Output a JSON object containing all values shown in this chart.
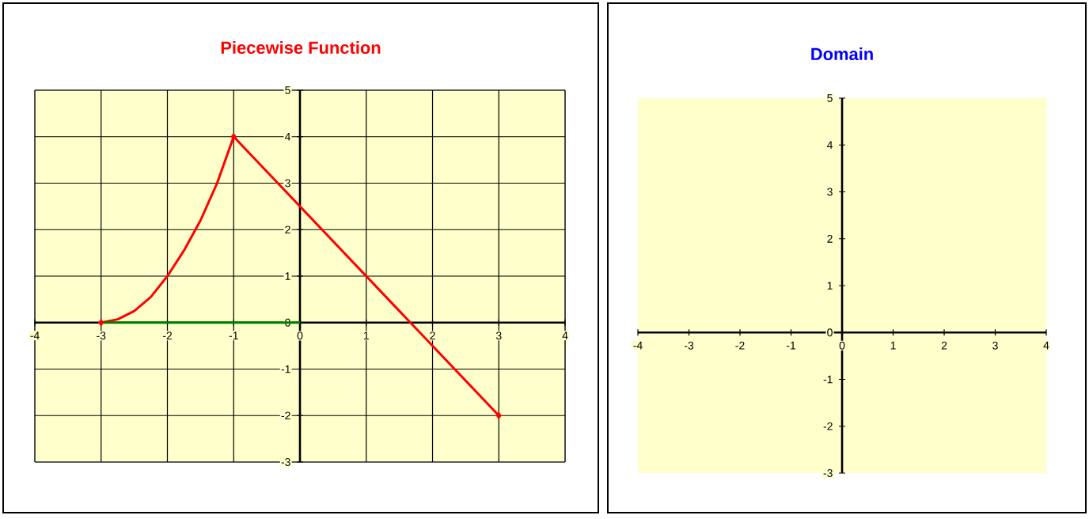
{
  "chart_data": [
    {
      "type": "line",
      "title": "Piecewise Function",
      "xlim": [
        -4,
        4
      ],
      "ylim": [
        -3,
        5
      ],
      "xticks": [
        -4,
        -3,
        -2,
        -1,
        0,
        1,
        2,
        3,
        4
      ],
      "yticks": [
        -3,
        -2,
        -1,
        0,
        1,
        2,
        3,
        4,
        5
      ],
      "grid": true,
      "line_style": "solid",
      "series": [
        {
          "color": "#ff0000",
          "x": [
            -3,
            -2.75,
            -2.5,
            -2.25,
            -2,
            -1.75,
            -1.5,
            -1.25,
            -1,
            3
          ],
          "values": [
            0,
            0.07,
            0.25,
            0.55,
            1,
            1.55,
            2.2,
            3,
            4,
            -2
          ]
        },
        {
          "type": "scatter",
          "marker": "diamond",
          "color": "#ff0000",
          "x": [
            -3,
            -1,
            3
          ],
          "values": [
            0,
            4,
            -2
          ]
        },
        {
          "color": "#008000",
          "x": [
            -3,
            0
          ],
          "values": [
            0,
            0
          ]
        }
      ]
    },
    {
      "type": "line",
      "title": "Domain",
      "xlim": [
        -4,
        4
      ],
      "ylim": [
        -3,
        5
      ],
      "xticks": [
        -4,
        -3,
        -2,
        -1,
        0,
        1,
        2,
        3,
        4
      ],
      "yticks": [
        -3,
        -2,
        -1,
        0,
        1,
        2,
        3,
        4,
        5
      ]
    }
  ]
}
